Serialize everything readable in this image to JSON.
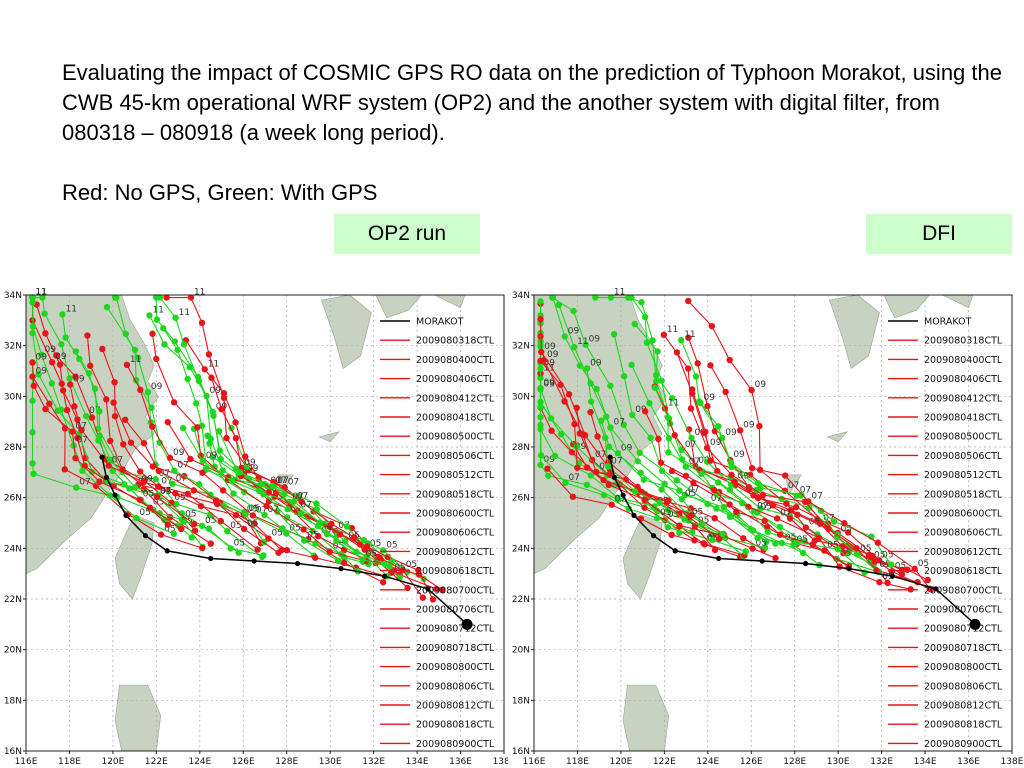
{
  "description": {
    "line1": "Evaluating the impact of COSMIC GPS RO data on the prediction of Typhoon Morakot, using the CWB 45-km operational WRF system (OP2) and the another system with digital filter, from 080318 – 080918 (a week long period).",
    "line2": "Red: No GPS, Green: With GPS"
  },
  "labels": {
    "op2": "OP2 run",
    "dfi": "DFI"
  },
  "map": {
    "lat_ticks": [
      "34N",
      "32N",
      "30N",
      "28N",
      "26N",
      "24N",
      "22N",
      "20N",
      "18N",
      "16N"
    ],
    "lon_ticks": [
      "116E",
      "118E",
      "120E",
      "122E",
      "124E",
      "126E",
      "128E",
      "130E",
      "132E",
      "134E",
      "136E",
      "138E"
    ],
    "legend": {
      "best_track": "MORAKOT",
      "runs": [
        "2009080318CTL",
        "2009080400CTL",
        "2009080406CTL",
        "2009080412CTL",
        "2009080418CTL",
        "2009080500CTL",
        "2009080506CTL",
        "2009080512CTL",
        "2009080518CTL",
        "2009080600CTL",
        "2009080606CTL",
        "2009080612CTL",
        "2009080618CTL",
        "2009080700CTL",
        "2009080706CTL",
        "2009080712CTL",
        "2009080718CTL",
        "2009080800CTL",
        "2009080806CTL",
        "2009080812CTL",
        "2009080818CTL",
        "2009080900CTL"
      ]
    },
    "colors": {
      "no_gps": "#e8141a",
      "with_gps": "#1ed61e",
      "best_track": "#000000",
      "land": "#c8d2c0",
      "grid": "#aaaaaa"
    }
  }
}
